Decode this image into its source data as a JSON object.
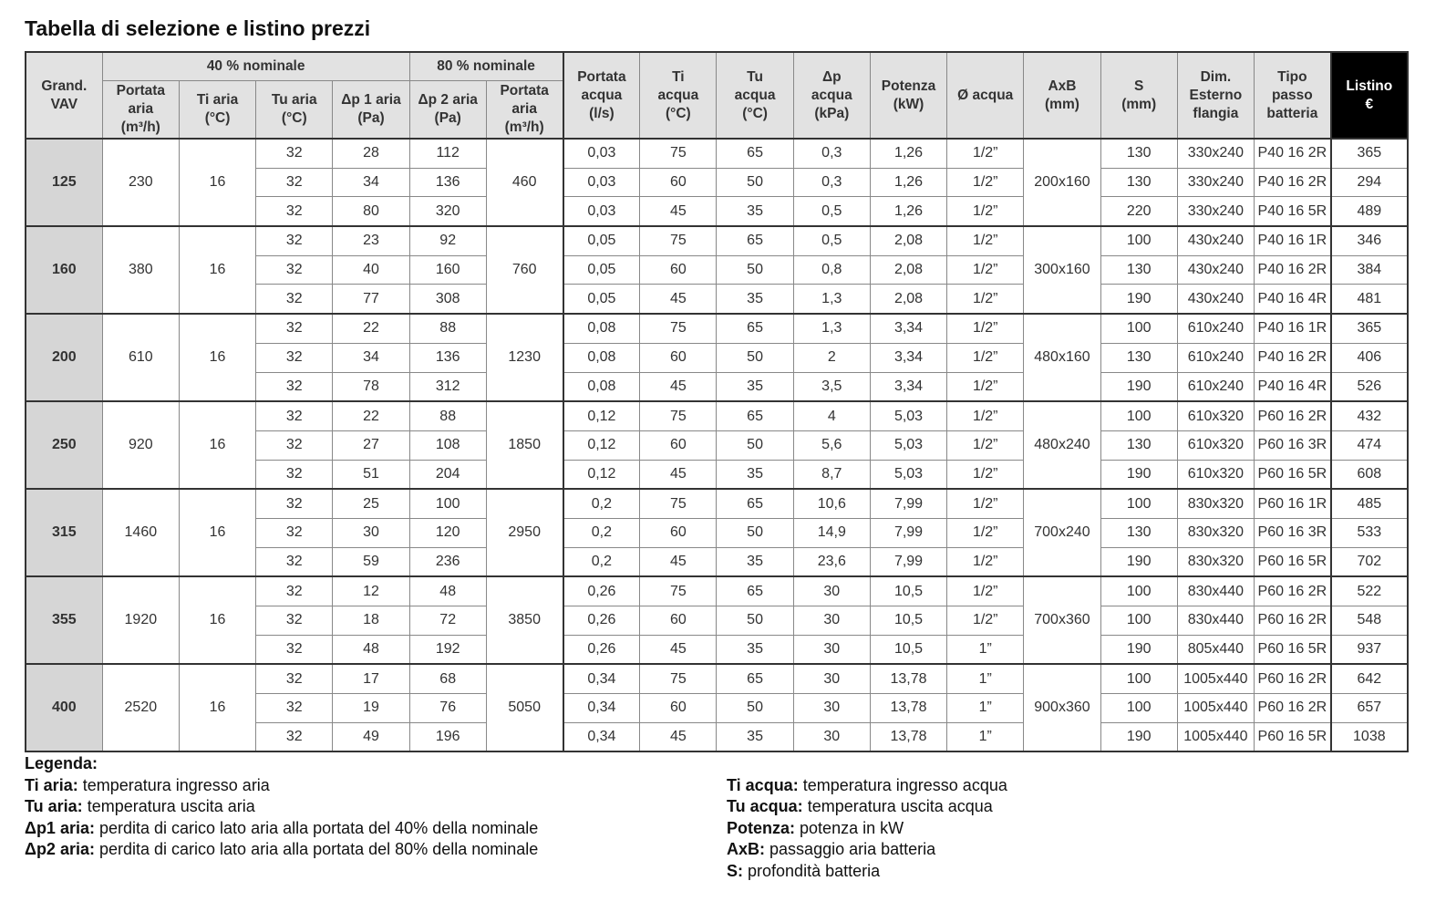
{
  "title": "Tabella di selezione e listino prezzi",
  "table": {
    "group_headers": [
      "40 % nominale",
      "80 % nominale"
    ],
    "columns": [
      "Grand.\nVAV",
      "Portata\naria\n(m³/h)",
      "Ti aria\n(°C)",
      "Tu aria\n(°C)",
      "Δp 1 aria\n(Pa)",
      "Δp 2 aria\n(Pa)",
      "Portata\naria\n(m³/h)",
      "Portata\nacqua\n(l/s)",
      "Ti\nacqua\n(°C)",
      "Tu\nacqua\n(°C)",
      "Δp\nacqua\n(kPa)",
      "Potenza\n(kW)",
      "Ø acqua",
      "AxB\n(mm)",
      "S\n(mm)",
      "Dim.\nEsterno\nflangia",
      "Tipo\npasso\nbatteria",
      "Listino\n€"
    ],
    "groups": [
      {
        "size": 125,
        "portata_40": 230,
        "ti_aria": 16,
        "portata_80": 460,
        "axb": "200x160",
        "rows": [
          [
            32,
            28,
            112,
            "0,03",
            75,
            65,
            "0,3",
            "1,26",
            "1/2”",
            130,
            "330x240",
            "P40 16 2R",
            365
          ],
          [
            32,
            34,
            136,
            "0,03",
            60,
            50,
            "0,3",
            "1,26",
            "1/2”",
            130,
            "330x240",
            "P40 16 2R",
            294
          ],
          [
            32,
            80,
            320,
            "0,03",
            45,
            35,
            "0,5",
            "1,26",
            "1/2”",
            220,
            "330x240",
            "P40 16 5R",
            489
          ]
        ]
      },
      {
        "size": 160,
        "portata_40": 380,
        "ti_aria": 16,
        "portata_80": 760,
        "axb": "300x160",
        "rows": [
          [
            32,
            23,
            92,
            "0,05",
            75,
            65,
            "0,5",
            "2,08",
            "1/2”",
            100,
            "430x240",
            "P40 16 1R",
            346
          ],
          [
            32,
            40,
            160,
            "0,05",
            60,
            50,
            "0,8",
            "2,08",
            "1/2”",
            130,
            "430x240",
            "P40 16 2R",
            384
          ],
          [
            32,
            77,
            308,
            "0,05",
            45,
            35,
            "1,3",
            "2,08",
            "1/2”",
            190,
            "430x240",
            "P40 16 4R",
            481
          ]
        ]
      },
      {
        "size": 200,
        "portata_40": 610,
        "ti_aria": 16,
        "portata_80": 1230,
        "axb": "480x160",
        "rows": [
          [
            32,
            22,
            88,
            "0,08",
            75,
            65,
            "1,3",
            "3,34",
            "1/2”",
            100,
            "610x240",
            "P40 16 1R",
            365
          ],
          [
            32,
            34,
            136,
            "0,08",
            60,
            50,
            2,
            "3,34",
            "1/2”",
            130,
            "610x240",
            "P40 16 2R",
            406
          ],
          [
            32,
            78,
            312,
            "0,08",
            45,
            35,
            "3,5",
            "3,34",
            "1/2”",
            190,
            "610x240",
            "P40 16 4R",
            526
          ]
        ]
      },
      {
        "size": 250,
        "portata_40": 920,
        "ti_aria": 16,
        "portata_80": 1850,
        "axb": "480x240",
        "rows": [
          [
            32,
            22,
            88,
            "0,12",
            75,
            65,
            4,
            "5,03",
            "1/2”",
            100,
            "610x320",
            "P60 16 2R",
            432
          ],
          [
            32,
            27,
            108,
            "0,12",
            60,
            50,
            "5,6",
            "5,03",
            "1/2”",
            130,
            "610x320",
            "P60 16 3R",
            474
          ],
          [
            32,
            51,
            204,
            "0,12",
            45,
            35,
            "8,7",
            "5,03",
            "1/2”",
            190,
            "610x320",
            "P60 16 5R",
            608
          ]
        ]
      },
      {
        "size": 315,
        "portata_40": 1460,
        "ti_aria": 16,
        "portata_80": 2950,
        "axb": "700x240",
        "rows": [
          [
            32,
            25,
            100,
            "0,2",
            75,
            65,
            "10,6",
            "7,99",
            "1/2”",
            100,
            "830x320",
            "P60 16 1R",
            485
          ],
          [
            32,
            30,
            120,
            "0,2",
            60,
            50,
            "14,9",
            "7,99",
            "1/2”",
            130,
            "830x320",
            "P60 16 3R",
            533
          ],
          [
            32,
            59,
            236,
            "0,2",
            45,
            35,
            "23,6",
            "7,99",
            "1/2”",
            190,
            "830x320",
            "P60 16 5R",
            702
          ]
        ]
      },
      {
        "size": 355,
        "portata_40": 1920,
        "ti_aria": 16,
        "portata_80": 3850,
        "axb": "700x360",
        "rows": [
          [
            32,
            12,
            48,
            "0,26",
            75,
            65,
            30,
            "10,5",
            "1/2”",
            100,
            "830x440",
            "P60 16 2R",
            522
          ],
          [
            32,
            18,
            72,
            "0,26",
            60,
            50,
            30,
            "10,5",
            "1/2”",
            100,
            "830x440",
            "P60 16 2R",
            548
          ],
          [
            32,
            48,
            192,
            "0,26",
            45,
            35,
            30,
            "10,5",
            "1”",
            190,
            "805x440",
            "P60 16 5R",
            937
          ]
        ]
      },
      {
        "size": 400,
        "portata_40": 2520,
        "ti_aria": 16,
        "portata_80": 5050,
        "axb": "900x360",
        "rows": [
          [
            32,
            17,
            68,
            "0,34",
            75,
            65,
            30,
            "13,78",
            "1”",
            100,
            "1005x440",
            "P60 16 2R",
            642
          ],
          [
            32,
            19,
            76,
            "0,34",
            60,
            50,
            30,
            "13,78",
            "1”",
            100,
            "1005x440",
            "P60 16 2R",
            657
          ],
          [
            32,
            49,
            196,
            "0,34",
            45,
            35,
            30,
            "13,78",
            "1”",
            190,
            "1005x440",
            "P60 16 5R",
            1038
          ]
        ]
      }
    ]
  },
  "legend": {
    "title": "Legenda:",
    "left": [
      {
        "term": "Ti aria:",
        "text": "temperatura ingresso aria"
      },
      {
        "term": "Tu aria:",
        "text": "temperatura uscita aria"
      },
      {
        "term": "Δp1 aria:",
        "text": "perdita di carico lato aria alla portata del 40% della nominale"
      },
      {
        "term": "Δp2 aria:",
        "text": "perdita di carico lato aria alla portata del 80% della nominale"
      }
    ],
    "right": [
      {
        "term": "Ti acqua:",
        "text": "temperatura ingresso acqua"
      },
      {
        "term": "Tu acqua:",
        "text": "temperatura uscita acqua"
      },
      {
        "term": "Potenza:",
        "text": "potenza in kW"
      },
      {
        "term": "AxB:",
        "text": "passaggio aria batteria"
      },
      {
        "term": "S:",
        "text": "profondità batteria"
      }
    ]
  }
}
